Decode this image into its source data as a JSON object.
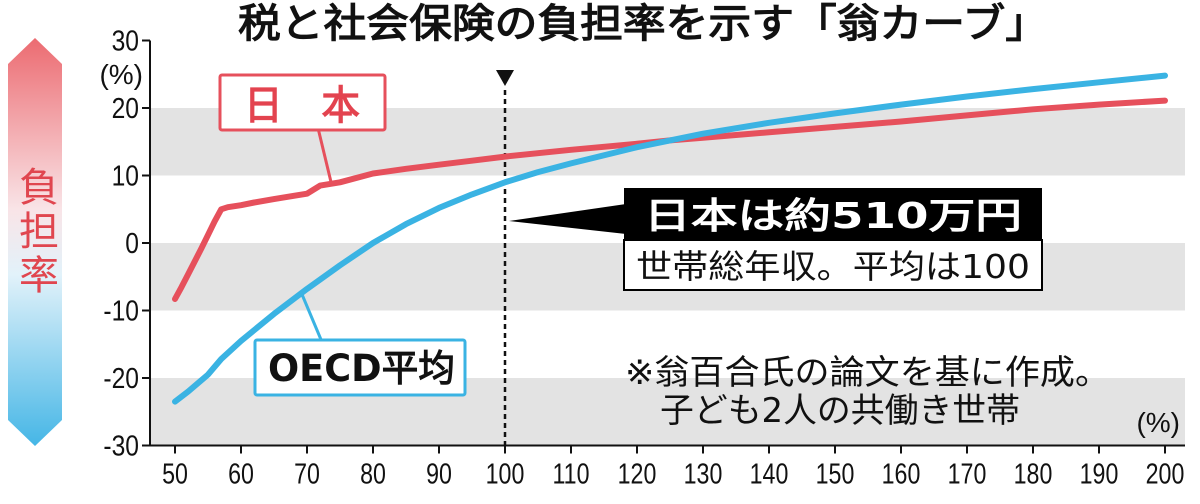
{
  "colors": {
    "band": "#e3e3e3",
    "arrow_top": "#ec6b71",
    "arrow_upper_mid": "#f9e4e7",
    "arrow_lower_mid": "#e2f2fa",
    "arrow_bottom": "#45b6e6",
    "axis_label": "#e0464f",
    "callout": "#000000"
  },
  "chart_data": {
    "type": "line",
    "title": "税と社会保険の負担率を示す「翁カーブ」",
    "ylabel": "負担率",
    "y_unit": "(%)",
    "xlabel": "(%)",
    "xlim": [
      50,
      200
    ],
    "ylim": [
      -30,
      30
    ],
    "x_ticks": [
      50,
      60,
      70,
      80,
      90,
      100,
      110,
      120,
      130,
      140,
      150,
      160,
      170,
      180,
      190,
      200
    ],
    "y_ticks": [
      30,
      20,
      10,
      0,
      -10,
      -20,
      -30
    ],
    "grid": false,
    "background_bands": true,
    "reference_line_x": 100,
    "series": [
      {
        "name": "日　本",
        "color": "#e6505c",
        "x": [
          50,
          51,
          52,
          53,
          54,
          55,
          56,
          57,
          58,
          60,
          62,
          65,
          68,
          70,
          72,
          75,
          80,
          85,
          90,
          95,
          100,
          110,
          120,
          125,
          130,
          140,
          150,
          160,
          170,
          180,
          190,
          200
        ],
        "y": [
          -8.3,
          -6.5,
          -4.6,
          -2.7,
          -0.8,
          1.2,
          3.2,
          5.0,
          5.3,
          5.6,
          6.0,
          6.5,
          7.0,
          7.3,
          8.5,
          9.0,
          10.3,
          11.0,
          11.6,
          12.2,
          12.8,
          13.8,
          14.7,
          15.2,
          15.6,
          16.4,
          17.2,
          18.0,
          18.9,
          19.8,
          20.5,
          21.1
        ]
      },
      {
        "name": "OECD平均",
        "color": "#3ab3e3",
        "x": [
          50,
          52,
          55,
          57,
          60,
          65,
          70,
          75,
          80,
          85,
          90,
          95,
          100,
          105,
          110,
          120,
          125,
          130,
          140,
          150,
          160,
          170,
          180,
          190,
          200
        ],
        "y": [
          -23.5,
          -22.0,
          -19.5,
          -17.2,
          -14.5,
          -10.5,
          -6.8,
          -3.3,
          0.0,
          2.8,
          5.2,
          7.2,
          9.0,
          10.5,
          11.8,
          14.2,
          15.2,
          16.2,
          17.8,
          19.2,
          20.5,
          21.7,
          22.8,
          23.8,
          24.8
        ]
      }
    ],
    "annotations": {
      "callout_head": "日本は約510万円",
      "callout_body": "世帯総年収。平均は100",
      "note": [
        "※翁百合氏の論文を基に作成。",
        "子ども2人の共働き世帯"
      ]
    }
  }
}
